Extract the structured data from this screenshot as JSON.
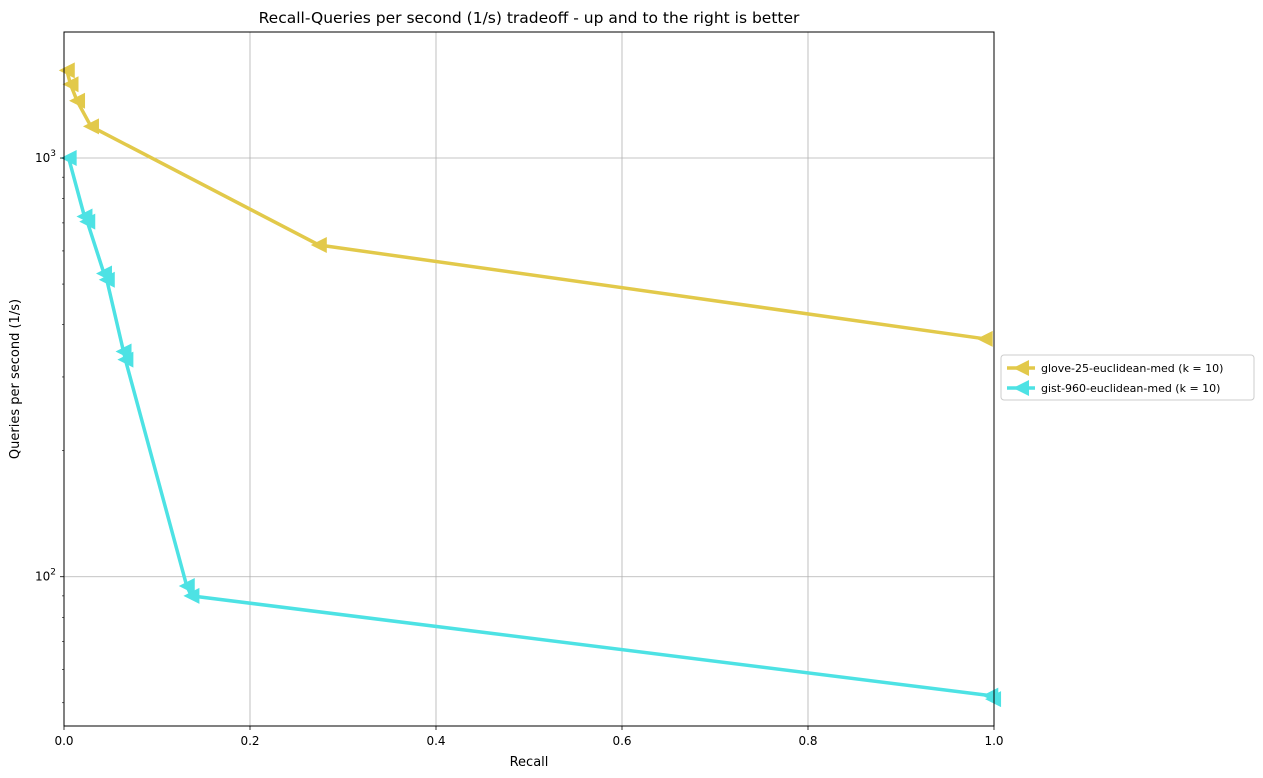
{
  "chart_data": {
    "type": "line",
    "title": "Recall-Queries per second (1/s) tradeoff - up and to the right is better",
    "xlabel": "Recall",
    "ylabel": "Queries per second (1/s)",
    "xlim": [
      0,
      1
    ],
    "ylim": [
      44,
      2000
    ],
    "yscale": "log",
    "grid": true,
    "legend_position": "right, outside",
    "x_ticks": [
      {
        "value": 0.0,
        "label": "0.0"
      },
      {
        "value": 0.2,
        "label": "0.2"
      },
      {
        "value": 0.4,
        "label": "0.4"
      },
      {
        "value": 0.6,
        "label": "0.6"
      },
      {
        "value": 0.8,
        "label": "0.8"
      },
      {
        "value": 1.0,
        "label": "1.0"
      }
    ],
    "y_ticks": [
      {
        "value": 100,
        "base": "10",
        "exp": "2"
      },
      {
        "value": 1000,
        "base": "10",
        "exp": "3"
      }
    ],
    "series": [
      {
        "name": "glove-25-euclidean-med (k = 10)",
        "color": "#e2c94a",
        "marker": "triangle-left",
        "x": [
          0.003,
          0.007,
          0.014,
          0.029,
          0.274,
          0.99
        ],
        "y": [
          1620,
          1500,
          1370,
          1190,
          620,
          370
        ]
      },
      {
        "name": "gist-960-euclidean-med (k = 10)",
        "color": "#4de2e4",
        "marker": "triangle-left",
        "x": [
          0.005,
          0.022,
          0.025,
          0.043,
          0.046,
          0.064,
          0.066,
          0.132,
          0.137,
          0.996,
          0.999
        ],
        "y": [
          1000,
          725,
          705,
          530,
          512,
          345,
          330,
          95,
          90,
          52,
          51
        ]
      }
    ]
  }
}
